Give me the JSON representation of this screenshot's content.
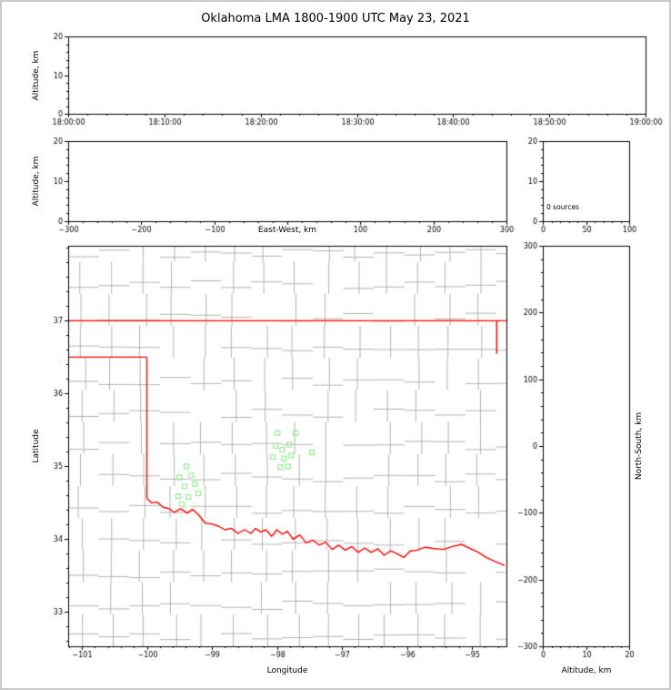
{
  "title": "Oklahoma LMA 1800-1900 UTC May 23, 2021",
  "labels": {
    "altitude_km": "Altitude, km",
    "east_west_km": "East-West, km",
    "latitude": "Latitude",
    "longitude": "Longitude",
    "north_south_km": "North-South, km",
    "source_count": "0 sources"
  },
  "colors": {
    "axis": "#000000",
    "county_line": "#b3b3b3",
    "state_border": "#ff0000",
    "station_marker": "#90ee90",
    "frame_border": "#c9c9c9",
    "background": "#ffffff"
  },
  "chart_data": [
    {
      "id": "time_height",
      "type": "scatter",
      "xlabel": "",
      "ylabel": "Altitude, km",
      "xlim": [
        64800,
        68400
      ],
      "xtick_values": [
        64800,
        65400,
        66000,
        66600,
        67200,
        67800,
        68400
      ],
      "xtick_labels": [
        "18:00:00",
        "18:10:00",
        "18:20:00",
        "18:30:00",
        "18:40:00",
        "18:50:00",
        "19:00:00"
      ],
      "x_minor": 120,
      "ylim": [
        0,
        20
      ],
      "ytick_values": [
        0,
        10,
        20
      ],
      "ytick_labels": [
        "0",
        "10",
        "20"
      ],
      "y_minor": 2,
      "points": []
    },
    {
      "id": "ew_height",
      "type": "scatter",
      "xlabel": "East-West, km",
      "ylabel": "Altitude, km",
      "xlim": [
        -300,
        300
      ],
      "xtick_values": [
        -300,
        -200,
        -100,
        0,
        100,
        200,
        300
      ],
      "xtick_labels": [
        "−300",
        "−200",
        "−100",
        "",
        "100",
        "200",
        "300"
      ],
      "x_minor": 20,
      "ylim": [
        0,
        20
      ],
      "ytick_values": [
        0,
        10,
        20
      ],
      "ytick_labels": [
        "0",
        "10",
        "20"
      ],
      "y_minor": 2,
      "points": []
    },
    {
      "id": "alt_histogram",
      "type": "line",
      "annotation": "0 sources",
      "xlim": [
        0,
        100
      ],
      "xtick_values": [
        0,
        50,
        100
      ],
      "xtick_labels": [
        "0",
        "50",
        "100"
      ],
      "x_minor": 10,
      "ylim": [
        0,
        20
      ],
      "ytick_values": [
        0,
        10,
        20
      ],
      "ytick_labels": [
        "0",
        "10",
        "20"
      ],
      "y_minor": 2,
      "values": []
    },
    {
      "id": "map",
      "type": "scatter",
      "xlabel": "Longitude",
      "ylabel": "Latitude",
      "xlim": [
        -101.21,
        -94.47
      ],
      "xtick_values": [
        -101,
        -100,
        -99,
        -98,
        -97,
        -96,
        -95
      ],
      "xtick_labels": [
        "−101",
        "−100",
        "−99",
        "−98",
        "−97",
        "−96",
        "−95"
      ],
      "x_minor": 0.2,
      "ylim": [
        32.53,
        38.03
      ],
      "ytick_values": [
        33,
        34,
        35,
        36,
        37
      ],
      "ytick_labels": [
        "33",
        "34",
        "35",
        "36",
        "37"
      ],
      "y_minor": 0.2,
      "stations": [
        [
          -97.99,
          35.46
        ],
        [
          -97.71,
          35.46
        ],
        [
          -98.02,
          35.28
        ],
        [
          -97.81,
          35.3
        ],
        [
          -97.92,
          35.23
        ],
        [
          -98.06,
          35.13
        ],
        [
          -97.89,
          35.11
        ],
        [
          -97.78,
          35.15
        ],
        [
          -97.95,
          34.99
        ],
        [
          -97.83,
          35.0
        ],
        [
          -97.46,
          35.19
        ],
        [
          -99.39,
          35.0
        ],
        [
          -99.5,
          34.85
        ],
        [
          -99.32,
          34.88
        ],
        [
          -99.42,
          34.73
        ],
        [
          -99.26,
          34.76
        ],
        [
          -99.52,
          34.59
        ],
        [
          -99.36,
          34.58
        ],
        [
          -99.21,
          34.63
        ],
        [
          -99.46,
          34.48
        ]
      ],
      "state_border": [
        [
          [
            -101.25,
            37.0
          ],
          [
            -94.44,
            37.0
          ]
        ],
        [
          [
            -101.25,
            36.5
          ],
          [
            -100.0,
            36.5
          ]
        ],
        [
          [
            -100.0,
            36.5
          ],
          [
            -100.0,
            34.56
          ]
        ],
        [
          [
            -94.62,
            37.0
          ],
          [
            -94.62,
            36.55
          ]
        ],
        [
          [
            -100.0,
            34.56
          ],
          [
            -99.93,
            34.5
          ],
          [
            -99.84,
            34.51
          ],
          [
            -99.75,
            34.44
          ],
          [
            -99.66,
            34.42
          ],
          [
            -99.58,
            34.37
          ],
          [
            -99.48,
            34.42
          ],
          [
            -99.38,
            34.36
          ],
          [
            -99.3,
            34.41
          ],
          [
            -99.21,
            34.34
          ],
          [
            -99.1,
            34.22
          ],
          [
            -99.0,
            34.21
          ],
          [
            -98.9,
            34.18
          ],
          [
            -98.8,
            34.13
          ],
          [
            -98.7,
            34.15
          ],
          [
            -98.6,
            34.08
          ],
          [
            -98.5,
            34.13
          ],
          [
            -98.4,
            34.08
          ],
          [
            -98.33,
            34.15
          ],
          [
            -98.25,
            34.1
          ],
          [
            -98.17,
            34.13
          ],
          [
            -98.08,
            34.04
          ],
          [
            -98.0,
            34.13
          ],
          [
            -97.92,
            34.07
          ],
          [
            -97.84,
            34.11
          ],
          [
            -97.75,
            34.0
          ],
          [
            -97.65,
            34.06
          ],
          [
            -97.55,
            33.95
          ],
          [
            -97.45,
            33.99
          ],
          [
            -97.35,
            33.92
          ],
          [
            -97.25,
            33.96
          ],
          [
            -97.15,
            33.86
          ],
          [
            -97.05,
            33.92
          ],
          [
            -96.95,
            33.85
          ],
          [
            -96.85,
            33.9
          ],
          [
            -96.75,
            33.82
          ],
          [
            -96.65,
            33.88
          ],
          [
            -96.55,
            33.82
          ],
          [
            -96.45,
            33.87
          ],
          [
            -96.35,
            33.78
          ],
          [
            -96.25,
            33.84
          ],
          [
            -96.15,
            33.8
          ],
          [
            -96.05,
            33.75
          ],
          [
            -95.95,
            33.84
          ],
          [
            -95.85,
            33.85
          ],
          [
            -95.72,
            33.89
          ],
          [
            -95.58,
            33.87
          ],
          [
            -95.44,
            33.86
          ],
          [
            -95.3,
            33.9
          ],
          [
            -95.16,
            33.93
          ],
          [
            -95.02,
            33.87
          ],
          [
            -94.9,
            33.82
          ],
          [
            -94.78,
            33.75
          ],
          [
            -94.66,
            33.7
          ],
          [
            -94.5,
            33.64
          ]
        ]
      ],
      "county_grid": {
        "seed": 12,
        "lon_step": 0.47,
        "lat_step": 0.44,
        "lon_offset": 0.21,
        "lat_offset": 0.12,
        "jitter": 0.12,
        "skip": 0.13
      }
    },
    {
      "id": "ns_height",
      "type": "scatter",
      "xlabel": "Altitude, km",
      "ylabel": "North-South, km",
      "xlim": [
        0,
        20
      ],
      "xtick_values": [
        0,
        10,
        20
      ],
      "xtick_labels": [
        "0",
        "10",
        "20"
      ],
      "x_minor": 2,
      "ylim": [
        -300,
        300
      ],
      "ytick_values": [
        -300,
        -200,
        -100,
        0,
        100,
        200,
        300
      ],
      "ytick_labels": [
        "−300",
        "−200",
        "−100",
        "0",
        "100",
        "200",
        "300"
      ],
      "y_minor": 20,
      "points": []
    }
  ]
}
